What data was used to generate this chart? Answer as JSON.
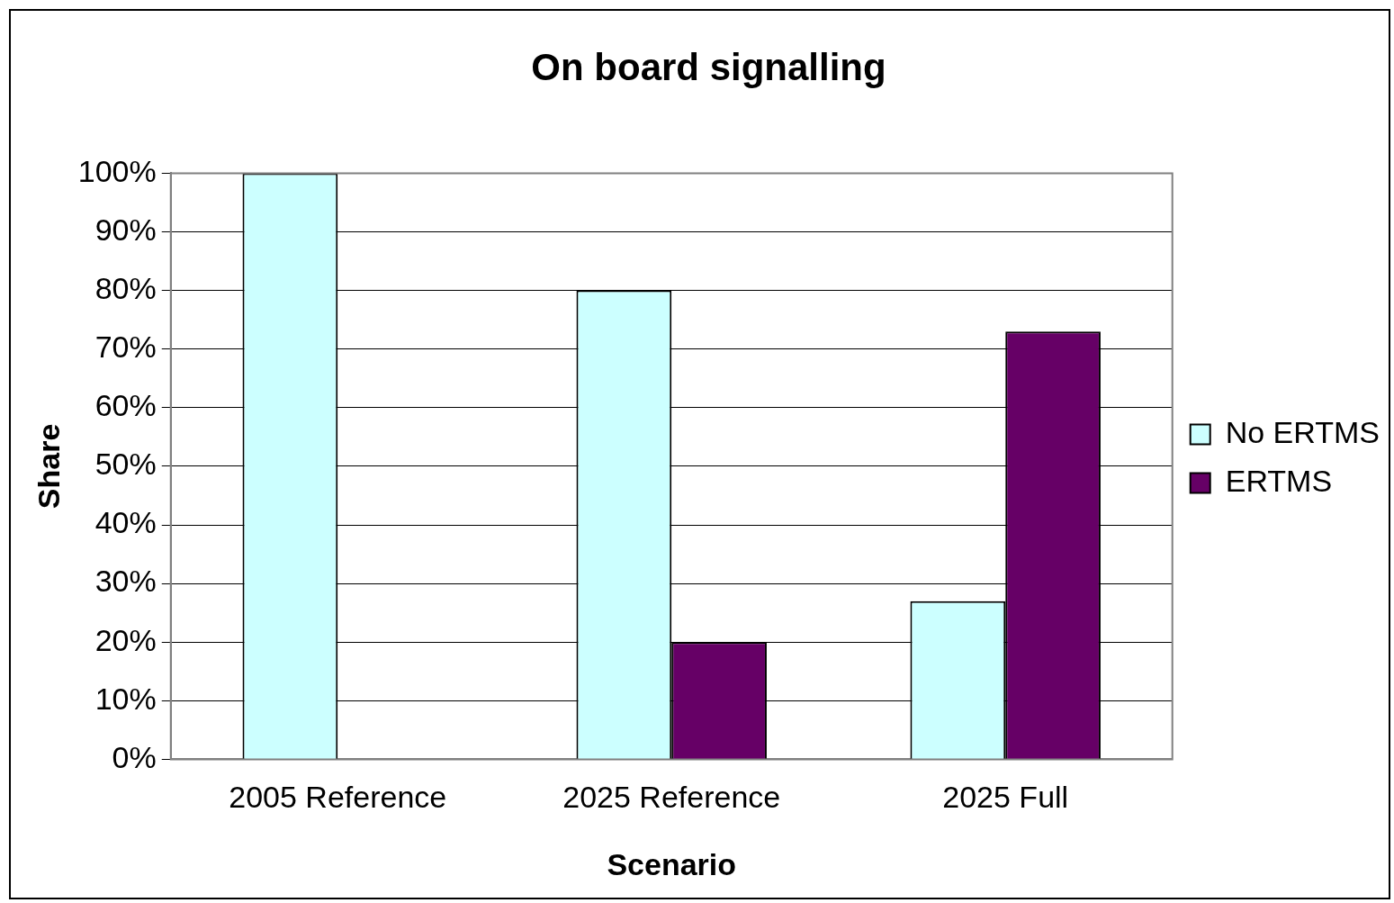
{
  "chart_data": {
    "type": "bar",
    "title": "On board signalling",
    "xlabel": "Scenario",
    "ylabel": "Share",
    "categories": [
      "2005 Reference",
      "2025 Reference",
      "2025 Full"
    ],
    "series": [
      {
        "name": "No ERTMS",
        "color": "#ccffff",
        "values": [
          100,
          80,
          27
        ]
      },
      {
        "name": "ERTMS",
        "color": "#660066",
        "values": [
          0,
          20,
          73
        ]
      }
    ],
    "ylim": [
      0,
      100
    ],
    "yticks": [
      {
        "value": 0,
        "label": "0%"
      },
      {
        "value": 10,
        "label": "10%"
      },
      {
        "value": 20,
        "label": "20%"
      },
      {
        "value": 30,
        "label": "30%"
      },
      {
        "value": 40,
        "label": "40%"
      },
      {
        "value": 50,
        "label": "50%"
      },
      {
        "value": 60,
        "label": "60%"
      },
      {
        "value": 70,
        "label": "70%"
      },
      {
        "value": 80,
        "label": "80%"
      },
      {
        "value": 90,
        "label": "90%"
      },
      {
        "value": 100,
        "label": "100%"
      }
    ],
    "grid": "y",
    "legend": "right"
  }
}
